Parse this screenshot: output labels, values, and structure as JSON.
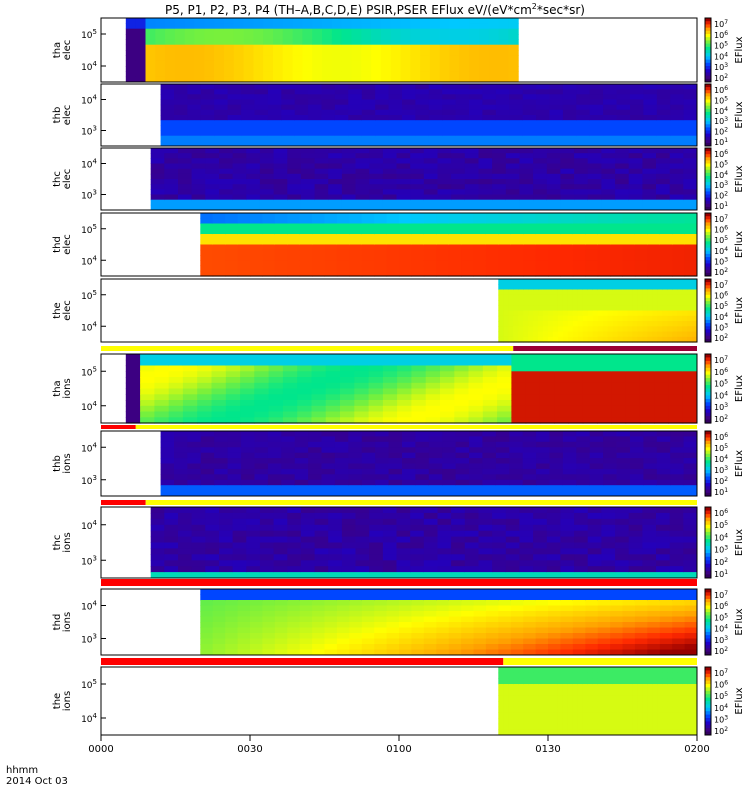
{
  "title": {
    "prefix": "P5, P1, P2, P3, P4 (TH–A,B,C,D,E) PSIR,PSER EFlux eV/(eV*cm",
    "sup": "2",
    "suffix": "*sec*sr)"
  },
  "footer": {
    "time_label": "hhmm",
    "date_label": "2014 Oct 03"
  },
  "colors": {
    "axis": "#000000",
    "flag_yellow": "#ffff00",
    "flag_red": "#ff0000",
    "flag_purple": "#9b0034"
  },
  "chart_data": {
    "type": "heatmap",
    "x_ticks": [
      "0000",
      "0030",
      "0100",
      "0130",
      "0200"
    ],
    "x_range_minutes": [
      0,
      120
    ],
    "y_scale": "log",
    "z_scale": "log",
    "colorbar_label": "EFlux",
    "panels": [
      {
        "ylabel": [
          "tha",
          "elec"
        ],
        "yticks": [
          {
            "base": "10",
            "exp": "5"
          },
          {
            "base": "10",
            "exp": "4"
          }
        ],
        "cbar_ticks": [
          {
            "base": "10",
            "exp": "7"
          },
          {
            "base": "10",
            "exp": "6"
          },
          {
            "base": "10",
            "exp": "5"
          },
          {
            "base": "10",
            "exp": "4"
          },
          {
            "base": "10",
            "exp": "3"
          },
          {
            "base": "10",
            "exp": "2"
          }
        ],
        "data_window_minutes": [
          5,
          84
        ],
        "style": "tha"
      },
      {
        "ylabel": [
          "thb",
          "elec"
        ],
        "yticks": [
          {
            "base": "10",
            "exp": "4"
          },
          {
            "base": "10",
            "exp": "3"
          }
        ],
        "cbar_ticks": [
          {
            "base": "10",
            "exp": "6"
          },
          {
            "base": "10",
            "exp": "5"
          },
          {
            "base": "10",
            "exp": "4"
          },
          {
            "base": "10",
            "exp": "3"
          },
          {
            "base": "10",
            "exp": "2"
          },
          {
            "base": "10",
            "exp": "1"
          }
        ],
        "data_window_minutes": [
          12,
          120
        ],
        "style": "thb"
      },
      {
        "ylabel": [
          "thc",
          "elec"
        ],
        "yticks": [
          {
            "base": "10",
            "exp": "4"
          },
          {
            "base": "10",
            "exp": "3"
          }
        ],
        "cbar_ticks": [
          {
            "base": "10",
            "exp": "6"
          },
          {
            "base": "10",
            "exp": "5"
          },
          {
            "base": "10",
            "exp": "4"
          },
          {
            "base": "10",
            "exp": "3"
          },
          {
            "base": "10",
            "exp": "2"
          },
          {
            "base": "10",
            "exp": "1"
          }
        ],
        "data_window_minutes": [
          10,
          120
        ],
        "style": "thc"
      },
      {
        "ylabel": [
          "thd",
          "elec"
        ],
        "yticks": [
          {
            "base": "10",
            "exp": "5"
          },
          {
            "base": "10",
            "exp": "4"
          }
        ],
        "cbar_ticks": [
          {
            "base": "10",
            "exp": "7"
          },
          {
            "base": "10",
            "exp": "6"
          },
          {
            "base": "10",
            "exp": "5"
          },
          {
            "base": "10",
            "exp": "4"
          },
          {
            "base": "10",
            "exp": "3"
          },
          {
            "base": "10",
            "exp": "2"
          }
        ],
        "data_window_minutes": [
          20,
          120
        ],
        "style": "thd"
      },
      {
        "ylabel": [
          "the",
          "elec"
        ],
        "yticks": [
          {
            "base": "10",
            "exp": "5"
          },
          {
            "base": "10",
            "exp": "4"
          }
        ],
        "cbar_ticks": [
          {
            "base": "10",
            "exp": "7"
          },
          {
            "base": "10",
            "exp": "6"
          },
          {
            "base": "10",
            "exp": "5"
          },
          {
            "base": "10",
            "exp": "4"
          },
          {
            "base": "10",
            "exp": "3"
          },
          {
            "base": "10",
            "exp": "2"
          }
        ],
        "data_window_minutes": [
          80,
          120
        ],
        "style": "the"
      },
      {
        "ylabel": [
          "tha",
          "ions"
        ],
        "yticks": [
          {
            "base": "10",
            "exp": "5"
          },
          {
            "base": "10",
            "exp": "4"
          }
        ],
        "cbar_ticks": [
          {
            "base": "10",
            "exp": "7"
          },
          {
            "base": "10",
            "exp": "6"
          },
          {
            "base": "10",
            "exp": "5"
          },
          {
            "base": "10",
            "exp": "4"
          },
          {
            "base": "10",
            "exp": "3"
          },
          {
            "base": "10",
            "exp": "2"
          }
        ],
        "data_window_minutes": [
          5,
          120
        ],
        "style": "tha_i"
      },
      {
        "ylabel": [
          "thb",
          "ions"
        ],
        "yticks": [
          {
            "base": "10",
            "exp": "4"
          },
          {
            "base": "10",
            "exp": "3"
          }
        ],
        "cbar_ticks": [
          {
            "base": "10",
            "exp": "6"
          },
          {
            "base": "10",
            "exp": "5"
          },
          {
            "base": "10",
            "exp": "4"
          },
          {
            "base": "10",
            "exp": "3"
          },
          {
            "base": "10",
            "exp": "2"
          },
          {
            "base": "10",
            "exp": "1"
          }
        ],
        "data_window_minutes": [
          12,
          120
        ],
        "style": "thb_i"
      },
      {
        "ylabel": [
          "thc",
          "ions"
        ],
        "yticks": [
          {
            "base": "10",
            "exp": "4"
          },
          {
            "base": "10",
            "exp": "3"
          }
        ],
        "cbar_ticks": [
          {
            "base": "10",
            "exp": "6"
          },
          {
            "base": "10",
            "exp": "5"
          },
          {
            "base": "10",
            "exp": "4"
          },
          {
            "base": "10",
            "exp": "3"
          },
          {
            "base": "10",
            "exp": "2"
          },
          {
            "base": "10",
            "exp": "1"
          }
        ],
        "data_window_minutes": [
          10,
          120
        ],
        "style": "thc_i"
      },
      {
        "ylabel": [
          "thd",
          "ions"
        ],
        "yticks": [
          {
            "base": "10",
            "exp": "4"
          },
          {
            "base": "10",
            "exp": "3"
          }
        ],
        "cbar_ticks": [
          {
            "base": "10",
            "exp": "7"
          },
          {
            "base": "10",
            "exp": "6"
          },
          {
            "base": "10",
            "exp": "5"
          },
          {
            "base": "10",
            "exp": "4"
          },
          {
            "base": "10",
            "exp": "3"
          },
          {
            "base": "10",
            "exp": "2"
          }
        ],
        "data_window_minutes": [
          20,
          120
        ],
        "style": "thd_i"
      },
      {
        "ylabel": [
          "the",
          "ions"
        ],
        "yticks": [
          {
            "base": "10",
            "exp": "5"
          },
          {
            "base": "10",
            "exp": "4"
          }
        ],
        "cbar_ticks": [
          {
            "base": "10",
            "exp": "7"
          },
          {
            "base": "10",
            "exp": "6"
          },
          {
            "base": "10",
            "exp": "5"
          },
          {
            "base": "10",
            "exp": "4"
          },
          {
            "base": "10",
            "exp": "3"
          },
          {
            "base": "10",
            "exp": "2"
          }
        ],
        "data_window_minutes": [
          80,
          120
        ],
        "style": "the_i"
      }
    ],
    "flag_bars": [
      {
        "segments": [
          {
            "from": 0,
            "to": 83,
            "color": "yellow"
          },
          {
            "from": 83,
            "to": 120,
            "color": "purple"
          }
        ]
      },
      {
        "segments": [
          {
            "from": 0,
            "to": 7,
            "color": "red"
          },
          {
            "from": 7,
            "to": 120,
            "color": "yellow"
          }
        ]
      },
      {
        "segments": [
          {
            "from": 0,
            "to": 9,
            "color": "red"
          },
          {
            "from": 9,
            "to": 120,
            "color": "yellow"
          }
        ]
      },
      {
        "segments": [
          {
            "from": 0,
            "to": 120,
            "color": "red"
          }
        ]
      },
      {
        "segments": [
          {
            "from": 0,
            "to": 81,
            "color": "red"
          },
          {
            "from": 81,
            "to": 120,
            "color": "yellow"
          }
        ]
      }
    ]
  }
}
